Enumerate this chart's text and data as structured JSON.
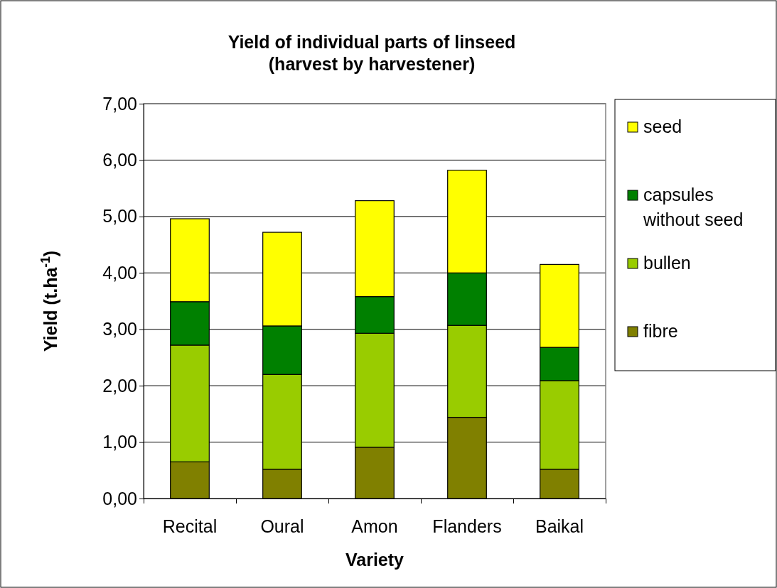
{
  "chart_data": {
    "type": "bar",
    "stacked": true,
    "title": "Yield of individual parts of linseed\n(harvest by harvestener)",
    "xlabel": "Variety",
    "ylabel": "Yield (t.ha$^{-1}$)",
    "categories": [
      "Recital",
      "Oural",
      "Amon",
      "Flanders",
      "Baikal"
    ],
    "series": [
      {
        "name": "fibre",
        "color": "#808000",
        "values": [
          0.65,
          0.52,
          0.91,
          1.44,
          0.52
        ]
      },
      {
        "name": "bullen",
        "color": "#99cc00",
        "values": [
          2.07,
          1.68,
          2.02,
          1.63,
          1.57
        ]
      },
      {
        "name": "capsules without seed",
        "color": "#008000",
        "values": [
          0.77,
          0.86,
          0.65,
          0.93,
          0.59
        ]
      },
      {
        "name": "seed",
        "color": "#ffff00",
        "values": [
          1.47,
          1.66,
          1.7,
          1.82,
          1.47
        ]
      }
    ],
    "ylim": [
      0,
      7
    ],
    "yticks": [
      {
        "value": 0,
        "label": "0,00"
      },
      {
        "value": 1,
        "label": "1,00"
      },
      {
        "value": 2,
        "label": "2,00"
      },
      {
        "value": 3,
        "label": "3,00"
      },
      {
        "value": 4,
        "label": "4,00"
      },
      {
        "value": 5,
        "label": "5,00"
      },
      {
        "value": 6,
        "label": "6,00"
      },
      {
        "value": 7,
        "label": "7,00"
      }
    ],
    "grid": "y",
    "legend": "right"
  }
}
